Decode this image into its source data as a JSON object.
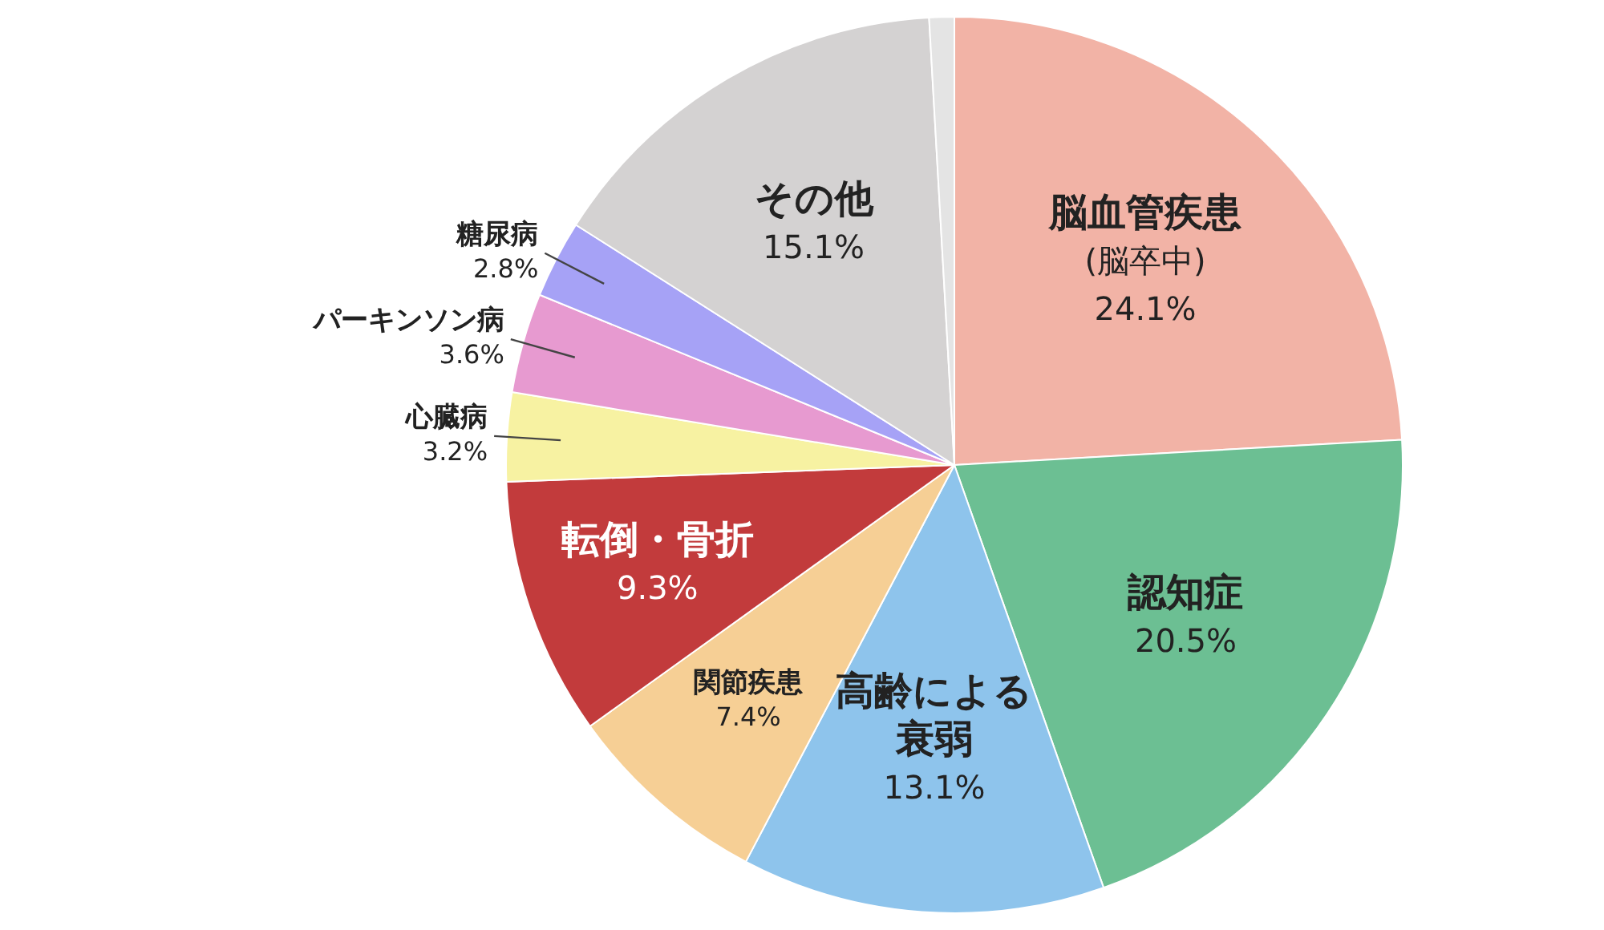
{
  "chart_data": {
    "type": "pie",
    "categories": [
      "脳血管疾患\n(脳卒中)",
      "認知症",
      "高齢による衰弱",
      "関節疾患",
      "転倒・骨折",
      "心臓病",
      "パーキンソン病",
      "糖尿病",
      "その他",
      null
    ],
    "values": [
      24.1,
      20.5,
      13.1,
      7.4,
      9.3,
      3.2,
      3.6,
      2.8,
      15.1,
      0.9
    ],
    "value_labels": [
      "24.1%",
      "20.5%",
      "13.1%",
      "7.4%",
      "9.3%",
      "3.2%",
      "3.6%",
      "2.8%",
      "15.1%",
      null
    ],
    "colors": [
      "#f2b3a6",
      "#6cbf93",
      "#8ec4ec",
      "#f6cf95",
      "#c23b3c",
      "#f7f2a2",
      "#e79ad0",
      "#a6a2f6",
      "#d4d2d2",
      "#e4e4e4"
    ],
    "legend": false
  }
}
